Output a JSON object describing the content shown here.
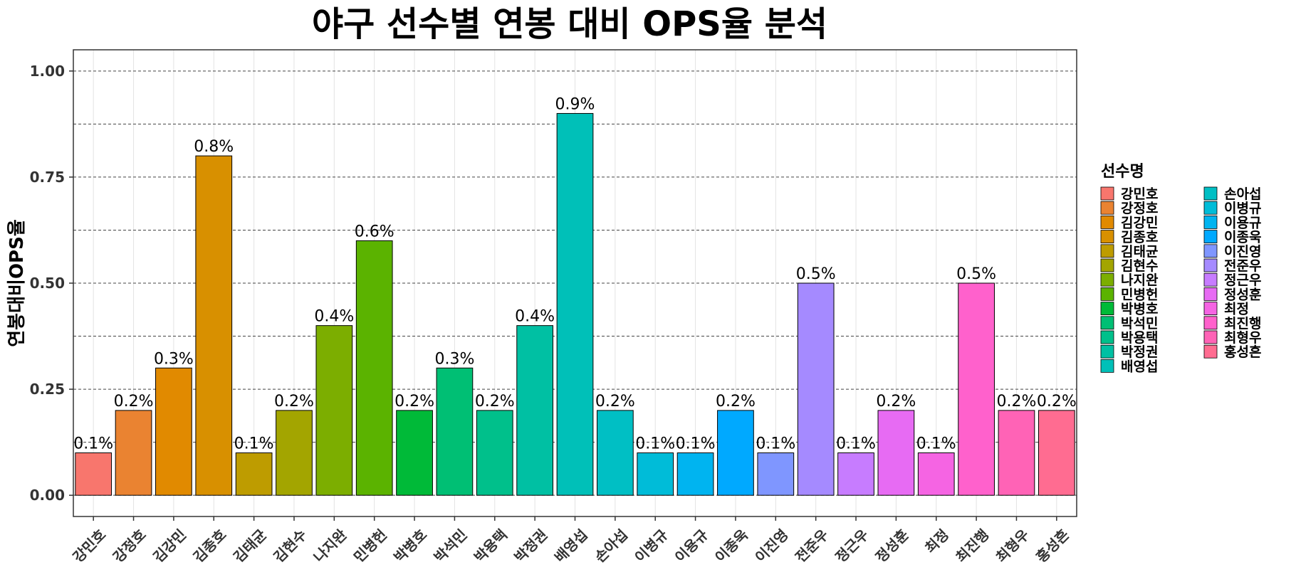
{
  "chart_data": {
    "type": "bar",
    "title": "야구 선수별 연봉 대비 OPS율 분석",
    "xlabel": "",
    "ylabel": "연봉대비OPS율",
    "ylim": [
      -0.05,
      1.05
    ],
    "yticks": [
      "0.00",
      "0.25",
      "0.50",
      "0.75",
      "1.00"
    ],
    "legend_title": "선수명",
    "legend_position": "right",
    "categories": [
      "강민호",
      "강정호",
      "김강민",
      "김종호",
      "김태균",
      "김현수",
      "나지완",
      "민병헌",
      "박병호",
      "박석민",
      "박용택",
      "박정권",
      "배영섭",
      "손아섭",
      "이병규",
      "이용규",
      "이종욱",
      "이진영",
      "전준우",
      "정근우",
      "정성훈",
      "최정",
      "최진행",
      "최형우",
      "홍성흔"
    ],
    "values": [
      0.1,
      0.2,
      0.3,
      0.8,
      0.1,
      0.2,
      0.4,
      0.6,
      0.2,
      0.3,
      0.2,
      0.4,
      0.9,
      0.2,
      0.1,
      0.1,
      0.2,
      0.1,
      0.5,
      0.1,
      0.2,
      0.1,
      0.5,
      0.2,
      0.2
    ],
    "labels": [
      "0.1%",
      "0.2%",
      "0.3%",
      "0.8%",
      "0.1%",
      "0.2%",
      "0.4%",
      "0.6%",
      "0.2%",
      "0.3%",
      "0.2%",
      "0.4%",
      "0.9%",
      "0.2%",
      "0.1%",
      "0.1%",
      "0.2%",
      "0.1%",
      "0.5%",
      "0.1%",
      "0.2%",
      "0.1%",
      "0.5%",
      "0.2%",
      "0.2%"
    ],
    "colors": [
      "#F8766D",
      "#EA8331",
      "#E18A00",
      "#D89000",
      "#BE9C00",
      "#A3A500",
      "#7CAE00",
      "#5BB300",
      "#00BA38",
      "#00BF74",
      "#00C08B",
      "#00C0A3",
      "#00C0B8",
      "#00BFC4",
      "#00BCD8",
      "#00B4F0",
      "#00A9FF",
      "#7F96FF",
      "#A58AFF",
      "#C77CFF",
      "#E76BF3",
      "#F564E3",
      "#FF61CC",
      "#FF63B6",
      "#FF6C91"
    ],
    "grid": true
  }
}
